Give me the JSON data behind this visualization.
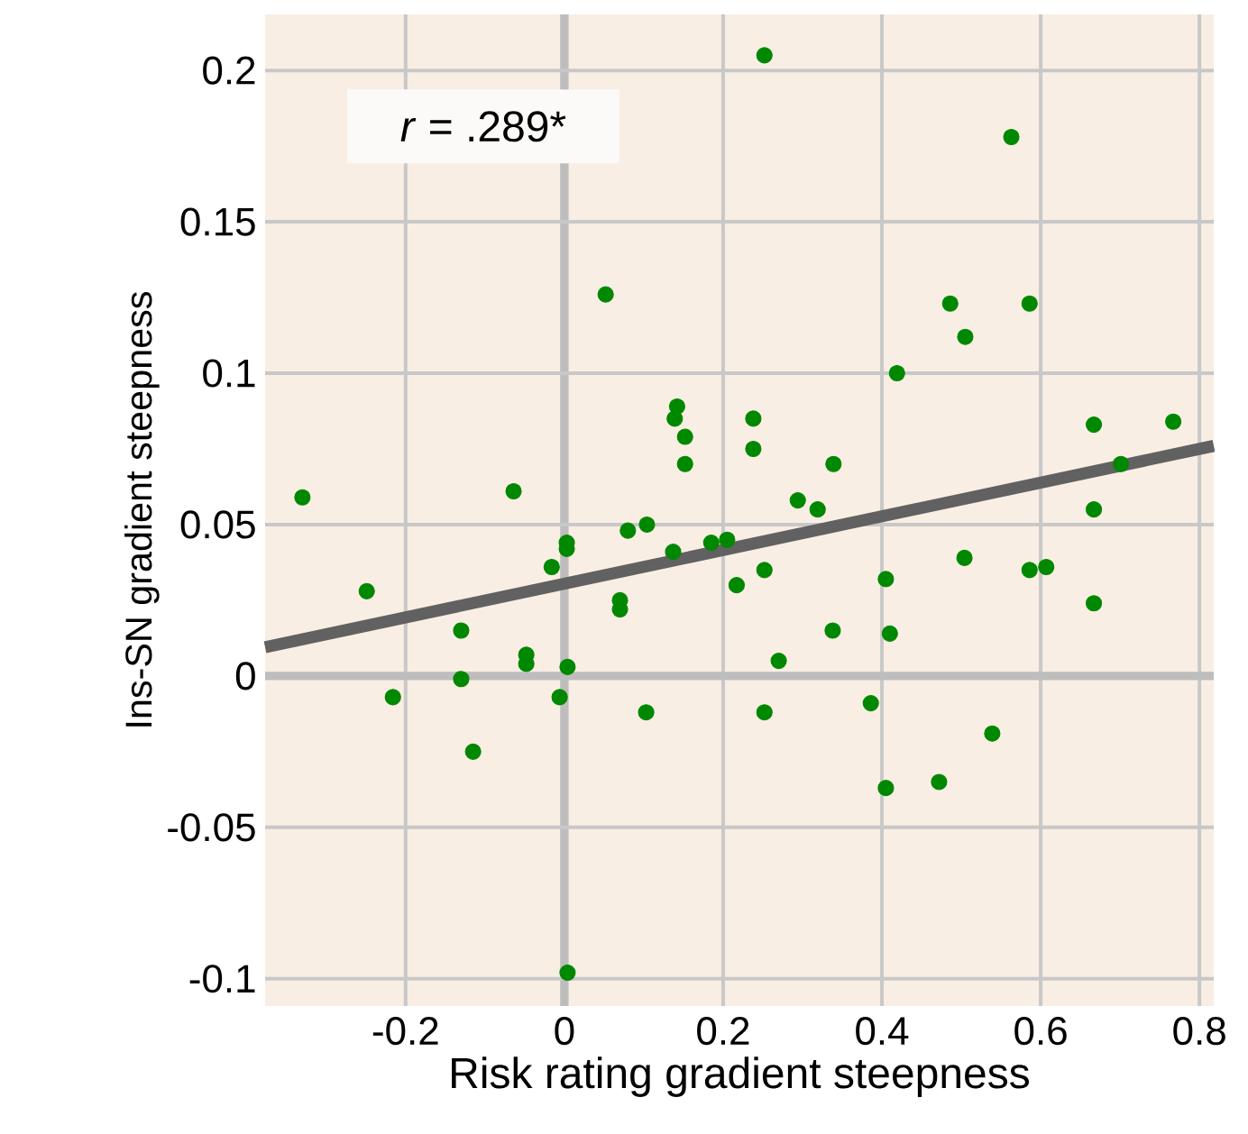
{
  "chart_data": {
    "type": "scatter",
    "xlabel": "Risk rating gradient steepness",
    "ylabel": "Ins-SN gradient steepness",
    "annotations": [
      "*r* = .289*"
    ],
    "xlim": [
      -0.377,
      0.818
    ],
    "ylim": [
      -0.109,
      0.2185
    ],
    "xticks": [
      -0.2,
      0,
      0.2,
      0.4,
      0.6,
      0.8
    ],
    "yticks": [
      -0.1,
      -0.05,
      0,
      0.05,
      0.1,
      0.15,
      0.2
    ],
    "grid": true,
    "series": [
      {
        "type": "scatter",
        "marker": "circle",
        "color": "#008800",
        "x": [
          0.052,
          0.142,
          0.139,
          0.152,
          0.152,
          -0.33,
          -0.064,
          0.252,
          0.563,
          0.486,
          0.586,
          0.505,
          0.419,
          0.238,
          0.238,
          0.339,
          0.667,
          0.767,
          0.701,
          0.294,
          0.319,
          0.667,
          0.08,
          0.104,
          0.003,
          0.003,
          -0.016,
          0.137,
          0.185,
          0.205,
          -0.249,
          0.217,
          0.07,
          0.07,
          -0.13,
          -0.048,
          -0.048,
          0.004,
          -0.13,
          -0.216,
          -0.006,
          0.103,
          -0.115,
          0.004,
          0.252,
          0.504,
          0.586,
          0.607,
          0.667,
          0.405,
          0.338,
          0.41,
          0.27,
          0.252,
          0.386,
          0.539,
          0.472,
          0.405
        ],
        "values": [
          0.126,
          0.089,
          0.085,
          0.079,
          0.07,
          0.059,
          0.061,
          0.205,
          0.178,
          0.123,
          0.123,
          0.112,
          0.1,
          0.085,
          0.075,
          0.07,
          0.083,
          0.084,
          0.07,
          0.058,
          0.055,
          0.055,
          0.048,
          0.05,
          0.044,
          0.042,
          0.036,
          0.041,
          0.044,
          0.045,
          0.028,
          0.03,
          0.025,
          0.022,
          0.015,
          0.007,
          0.004,
          0.003,
          -0.001,
          -0.007,
          -0.007,
          -0.012,
          -0.025,
          -0.098,
          0.035,
          0.039,
          0.035,
          0.036,
          0.024,
          0.032,
          0.015,
          0.014,
          0.005,
          -0.012,
          -0.009,
          -0.019,
          -0.035,
          -0.037
        ]
      },
      {
        "type": "line",
        "marker": "none",
        "color": "#616161",
        "x": [
          -0.377,
          0.818
        ],
        "values": [
          0.0095,
          0.076
        ]
      }
    ]
  }
}
